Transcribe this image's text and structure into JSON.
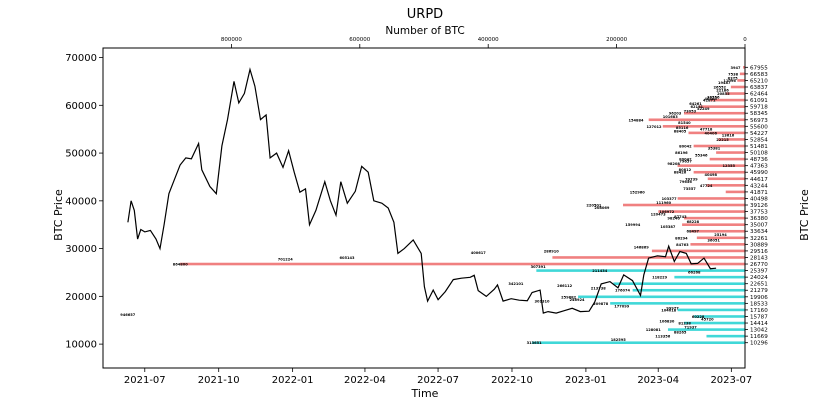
{
  "chart_data": {
    "type": "line",
    "title": "URPD",
    "top_xlabel": "Number of BTC",
    "xlabel": "Time",
    "ylabel": "BTC Price",
    "right_ylabel": "BTC Price",
    "ylim": [
      5000,
      72000
    ],
    "yticks": [
      10000,
      20000,
      30000,
      40000,
      50000,
      60000,
      70000
    ],
    "ytick_labels": [
      "10000",
      "20000",
      "30000",
      "40000",
      "50000",
      "60000",
      "70000"
    ],
    "xlim": [
      "2021-05-10",
      "2023-07-18"
    ],
    "xticks": [
      "2021-07-01",
      "2021-10-01",
      "2022-01-01",
      "2022-04-01",
      "2022-07-01",
      "2022-10-01",
      "2023-01-01",
      "2023-04-01",
      "2023-07-01"
    ],
    "xtick_labels": [
      "2021-07",
      "2021-10",
      "2022-01",
      "2022-04",
      "2022-07",
      "2022-10",
      "2023-01",
      "2023-04",
      "2023-07"
    ],
    "btc_axis_lim": [
      1000000,
      0
    ],
    "btc_ticks": [
      800000,
      600000,
      400000,
      200000,
      0
    ],
    "btc_tick_labels": [
      "800000",
      "600000",
      "400000",
      "200000",
      "0"
    ],
    "current_price": 26000,
    "colors": {
      "above": "#f08080",
      "below": "#40d8d8",
      "line": "#000000"
    },
    "price_series": {
      "name": "BTC Price",
      "points": [
        [
          "2021-06-10",
          35500
        ],
        [
          "2021-06-14",
          40000
        ],
        [
          "2021-06-18",
          38000
        ],
        [
          "2021-06-22",
          32000
        ],
        [
          "2021-06-26",
          34000
        ],
        [
          "2021-07-01",
          33500
        ],
        [
          "2021-07-08",
          33800
        ],
        [
          "2021-07-15",
          32000
        ],
        [
          "2021-07-20",
          30000
        ],
        [
          "2021-07-25",
          35000
        ],
        [
          "2021-07-31",
          41500
        ],
        [
          "2021-08-07",
          44500
        ],
        [
          "2021-08-14",
          47500
        ],
        [
          "2021-08-21",
          49000
        ],
        [
          "2021-08-28",
          48800
        ],
        [
          "2021-09-06",
          52000
        ],
        [
          "2021-09-10",
          46500
        ],
        [
          "2021-09-20",
          43000
        ],
        [
          "2021-09-28",
          41500
        ],
        [
          "2021-10-05",
          51500
        ],
        [
          "2021-10-12",
          57000
        ],
        [
          "2021-10-20",
          65000
        ],
        [
          "2021-10-26",
          60500
        ],
        [
          "2021-11-02",
          62500
        ],
        [
          "2021-11-09",
          67500
        ],
        [
          "2021-11-15",
          64000
        ],
        [
          "2021-11-22",
          57000
        ],
        [
          "2021-11-29",
          58000
        ],
        [
          "2021-12-04",
          49000
        ],
        [
          "2021-12-12",
          50000
        ],
        [
          "2021-12-20",
          47000
        ],
        [
          "2021-12-27",
          50500
        ],
        [
          "2022-01-03",
          46000
        ],
        [
          "2022-01-10",
          41800
        ],
        [
          "2022-01-17",
          42500
        ],
        [
          "2022-01-22",
          35000
        ],
        [
          "2022-01-30",
          38000
        ],
        [
          "2022-02-10",
          44000
        ],
        [
          "2022-02-17",
          40000
        ],
        [
          "2022-02-24",
          37000
        ],
        [
          "2022-03-02",
          44000
        ],
        [
          "2022-03-10",
          39500
        ],
        [
          "2022-03-20",
          42000
        ],
        [
          "2022-03-28",
          47200
        ],
        [
          "2022-04-05",
          46000
        ],
        [
          "2022-04-12",
          40000
        ],
        [
          "2022-04-22",
          39500
        ],
        [
          "2022-04-30",
          38500
        ],
        [
          "2022-05-07",
          35500
        ],
        [
          "2022-05-12",
          29000
        ],
        [
          "2022-05-20",
          30000
        ],
        [
          "2022-05-31",
          31800
        ],
        [
          "2022-06-10",
          29000
        ],
        [
          "2022-06-14",
          22000
        ],
        [
          "2022-06-18",
          19000
        ],
        [
          "2022-06-25",
          21300
        ],
        [
          "2022-07-01",
          19300
        ],
        [
          "2022-07-10",
          21000
        ],
        [
          "2022-07-20",
          23500
        ],
        [
          "2022-07-30",
          23800
        ],
        [
          "2022-08-10",
          24000
        ],
        [
          "2022-08-15",
          24400
        ],
        [
          "2022-08-20",
          21200
        ],
        [
          "2022-08-30",
          20000
        ],
        [
          "2022-09-09",
          21500
        ],
        [
          "2022-09-13",
          22400
        ],
        [
          "2022-09-20",
          19000
        ],
        [
          "2022-09-30",
          19500
        ],
        [
          "2022-10-10",
          19200
        ],
        [
          "2022-10-20",
          19100
        ],
        [
          "2022-10-26",
          20800
        ],
        [
          "2022-11-05",
          21300
        ],
        [
          "2022-11-09",
          16500
        ],
        [
          "2022-11-15",
          16800
        ],
        [
          "2022-11-25",
          16500
        ],
        [
          "2022-12-05",
          17000
        ],
        [
          "2022-12-15",
          17500
        ],
        [
          "2022-12-25",
          16800
        ],
        [
          "2023-01-05",
          16900
        ],
        [
          "2023-01-12",
          18800
        ],
        [
          "2023-01-20",
          22600
        ],
        [
          "2023-01-31",
          23100
        ],
        [
          "2023-02-10",
          21800
        ],
        [
          "2023-02-17",
          24500
        ],
        [
          "2023-02-28",
          23300
        ],
        [
          "2023-03-10",
          20200
        ],
        [
          "2023-03-14",
          24500
        ],
        [
          "2023-03-20",
          28000
        ],
        [
          "2023-03-31",
          28500
        ],
        [
          "2023-04-10",
          28300
        ],
        [
          "2023-04-14",
          30500
        ],
        [
          "2023-04-21",
          27300
        ],
        [
          "2023-04-28",
          29400
        ],
        [
          "2023-05-06",
          29000
        ],
        [
          "2023-05-12",
          26800
        ],
        [
          "2023-05-20",
          26900
        ],
        [
          "2023-05-28",
          28000
        ],
        [
          "2023-06-05",
          25800
        ],
        [
          "2023-06-12",
          25900
        ]
      ]
    },
    "urpd_levels": [
      [
        67955,
        3000
      ],
      [
        66583,
        8000
      ],
      [
        65210,
        12000
      ],
      [
        63837,
        22000
      ],
      [
        62464,
        30000
      ],
      [
        61091,
        55000
      ],
      [
        59718,
        72000
      ],
      [
        58345,
        95000
      ],
      [
        56973,
        150000
      ],
      [
        55600,
        128000
      ],
      [
        54227,
        88000
      ],
      [
        52854,
        42000
      ],
      [
        51481,
        80000
      ],
      [
        50108,
        45000
      ],
      [
        48736,
        55000
      ],
      [
        47363,
        105000
      ],
      [
        45990,
        80000
      ],
      [
        44617,
        58000
      ],
      [
        43244,
        60000
      ],
      [
        41871,
        30000
      ],
      [
        40498,
        105000
      ],
      [
        39126,
        190000
      ],
      [
        37753,
        135000
      ],
      [
        36380,
        95000
      ],
      [
        35007,
        98000
      ],
      [
        33634,
        85000
      ],
      [
        32261,
        75000
      ],
      [
        30889,
        85000
      ],
      [
        29516,
        145000
      ],
      [
        28143,
        300000
      ],
      [
        26770,
        880000
      ],
      [
        25397,
        325000
      ],
      [
        24024,
        110000
      ],
      [
        22651,
        205000
      ],
      [
        21279,
        175000
      ],
      [
        19906,
        260000
      ],
      [
        18533,
        210000
      ],
      [
        17160,
        105000
      ],
      [
        15787,
        80000
      ],
      [
        14414,
        95000
      ],
      [
        13042,
        120000
      ],
      [
        11669,
        60000
      ],
      [
        10296,
        332000
      ]
    ],
    "bar_annotations": [
      [
        "3947",
        67955
      ],
      [
        "7538",
        66583
      ],
      [
        "8375",
        65770
      ],
      [
        "11096",
        65210
      ],
      [
        "19487",
        64800
      ],
      [
        "26552",
        63837
      ],
      [
        "22186",
        63200
      ],
      [
        "20855",
        62464
      ],
      [
        "36556",
        61700
      ],
      [
        "40405",
        61400
      ],
      [
        "42871",
        61091
      ],
      [
        "64261",
        60400
      ],
      [
        "62191",
        59718
      ],
      [
        "52249",
        59300
      ],
      [
        "73053",
        58800
      ],
      [
        "96203",
        58345
      ],
      [
        "101683",
        57700
      ],
      [
        "154884",
        56973
      ],
      [
        "81540",
        56400
      ],
      [
        "127012",
        55600
      ],
      [
        "85116",
        55400
      ],
      [
        "47718",
        55000
      ],
      [
        "88405",
        54600
      ],
      [
        "40406",
        54227
      ],
      [
        "13616",
        53800
      ],
      [
        "22215",
        52854
      ],
      [
        "80042",
        51481
      ],
      [
        "35381",
        51100
      ],
      [
        "86196",
        50108
      ],
      [
        "55346",
        49600
      ],
      [
        "80042",
        48736
      ],
      [
        "79657",
        48300
      ],
      [
        "12355",
        47363
      ],
      [
        "98208",
        47800
      ],
      [
        "80812",
        46600
      ],
      [
        "88426",
        45990
      ],
      [
        "40498",
        45500
      ],
      [
        "70739",
        44617
      ],
      [
        "79656",
        44000
      ],
      [
        "47724",
        43244
      ],
      [
        "73557",
        42600
      ],
      [
        "152960",
        41871
      ],
      [
        "103377",
        40498
      ],
      [
        "111960",
        39700
      ],
      [
        "220501",
        39126
      ],
      [
        "208069",
        38600
      ],
      [
        "106972",
        37753
      ],
      [
        "120473",
        37200
      ],
      [
        "87743",
        36700
      ],
      [
        "98246",
        36380
      ],
      [
        "68228",
        35700
      ],
      [
        "159994",
        35007
      ],
      [
        "105387",
        34600
      ],
      [
        "68497",
        33634
      ],
      [
        "25194",
        33000
      ],
      [
        "86294",
        32261
      ],
      [
        "36051",
        31800
      ],
      [
        "84763",
        30889
      ],
      [
        "146869",
        30300
      ],
      [
        "286910",
        29516
      ],
      [
        "400617",
        29200
      ],
      [
        "605143",
        28143
      ],
      [
        "701224",
        27800
      ],
      [
        "864800",
        26770
      ],
      [
        "307391",
        26200
      ],
      [
        "211434",
        25397
      ],
      [
        "66268",
        25100
      ],
      [
        "118229",
        24024
      ],
      [
        "342101",
        22651
      ],
      [
        "266112",
        22300
      ],
      [
        "213738",
        21800
      ],
      [
        "176074",
        21279
      ],
      [
        "259882",
        19906
      ],
      [
        "246924",
        19300
      ],
      [
        "301310",
        19000
      ],
      [
        "209878",
        18533
      ],
      [
        "177099",
        18000
      ],
      [
        "99977",
        17600
      ],
      [
        "104018",
        17160
      ],
      [
        "60228",
        15787
      ],
      [
        "45720",
        15300
      ],
      [
        "106830",
        14800
      ],
      [
        "81238",
        14414
      ],
      [
        "71937",
        13600
      ],
      [
        "128081",
        13042
      ],
      [
        "88265",
        12500
      ],
      [
        "113356",
        11669
      ],
      [
        "182595",
        11000
      ],
      [
        "313651",
        10296
      ],
      [
        "946657",
        16200
      ]
    ],
    "right_tick_labels": [
      "67955",
      "66583",
      "65210",
      "63837",
      "62464",
      "61091",
      "59718",
      "58345",
      "56973",
      "55600",
      "54227",
      "52854",
      "51481",
      "50108",
      "48736",
      "47363",
      "45990",
      "44617",
      "43244",
      "41871",
      "40498",
      "39126",
      "37753",
      "36380",
      "35007",
      "33634",
      "32261",
      "30889",
      "29516",
      "28143",
      "26770",
      "25397",
      "24024",
      "22651",
      "21279",
      "19906",
      "18533",
      "17160",
      "15787",
      "14414",
      "13042",
      "11669",
      "10296"
    ]
  }
}
